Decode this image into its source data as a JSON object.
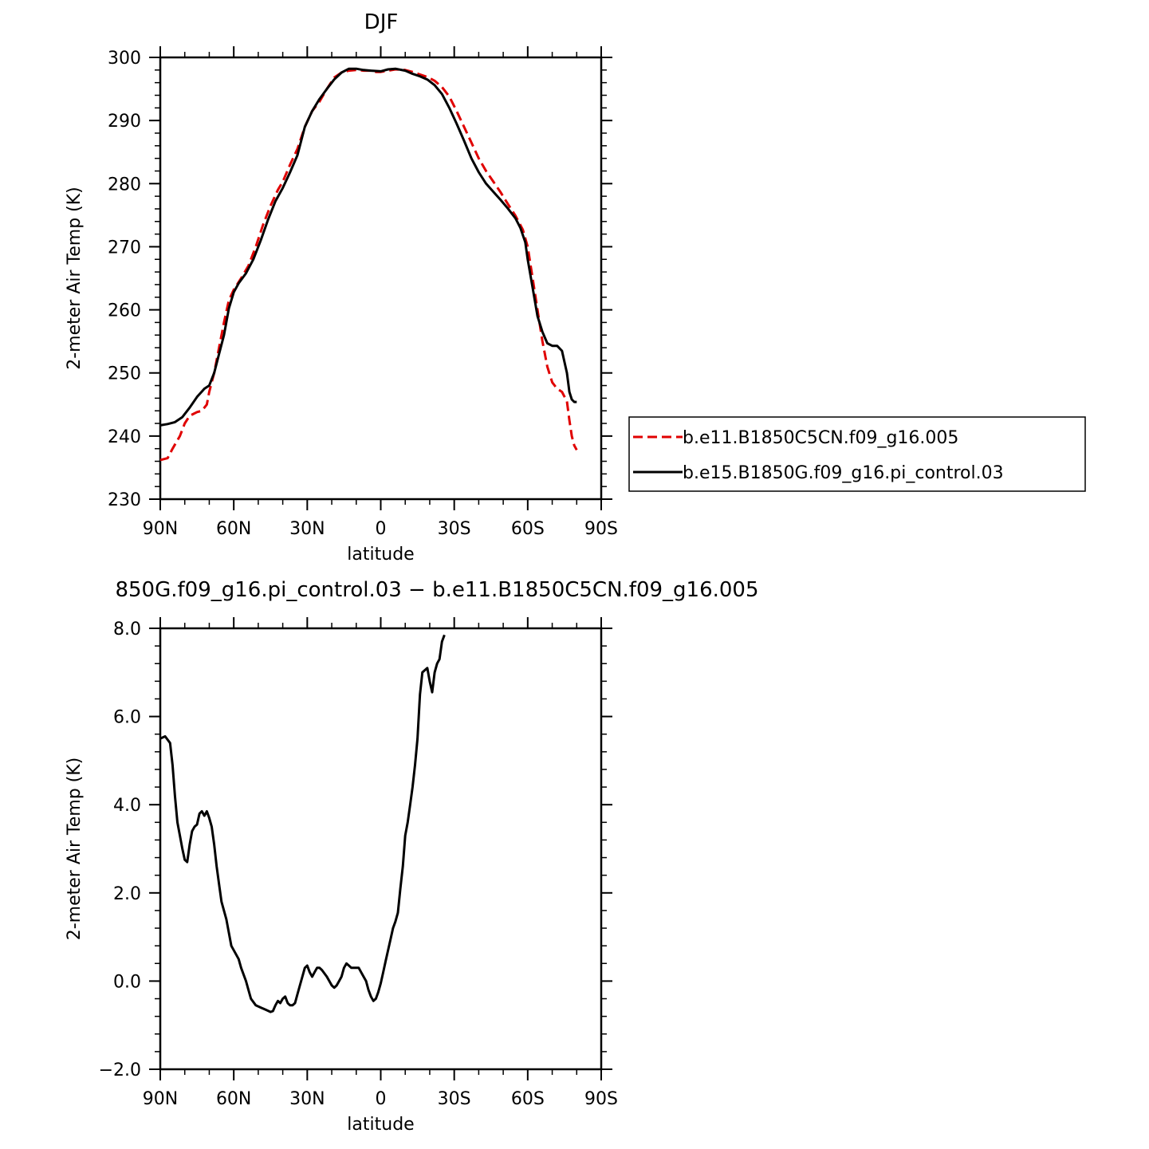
{
  "chart_data": [
    {
      "type": "line",
      "title": "DJF",
      "xlabel": "latitude",
      "ylabel": "2-meter Air Temp (K)",
      "xlim": [
        90,
        -90
      ],
      "ylim": [
        230,
        300
      ],
      "x_ticks": [
        90,
        60,
        30,
        0,
        -30,
        -60,
        -90
      ],
      "x_tick_labels": [
        "90N",
        "60N",
        "30N",
        "0",
        "30S",
        "60S",
        "90S"
      ],
      "y_ticks": [
        230,
        240,
        250,
        260,
        270,
        280,
        290,
        300
      ],
      "y_tick_labels": [
        "230",
        "240",
        "250",
        "260",
        "270",
        "280",
        "290",
        "300"
      ],
      "legend_placement": "outside-right",
      "series": [
        {
          "name": "b.e11.B1850C5CN.f09_g16.005",
          "color": "#e00000",
          "dash": "dashed",
          "points": [
            [
              90,
              236.2
            ],
            [
              87,
              236.5
            ],
            [
              85,
              238
            ],
            [
              82,
              240
            ],
            [
              80,
              242
            ],
            [
              78,
              243.2
            ],
            [
              75,
              243.8
            ],
            [
              73,
              244
            ],
            [
              71,
              245
            ],
            [
              70,
              247
            ],
            [
              68,
              250
            ],
            [
              66,
              254
            ],
            [
              64,
              258
            ],
            [
              62,
              261.5
            ],
            [
              60,
              263.2
            ],
            [
              57,
              265
            ],
            [
              54,
              267
            ],
            [
              51,
              270
            ],
            [
              48,
              273.5
            ],
            [
              45,
              276.5
            ],
            [
              42,
              279
            ],
            [
              40,
              280.3
            ],
            [
              37,
              283
            ],
            [
              34,
              285.5
            ],
            [
              31,
              289
            ],
            [
              28,
              291.5
            ],
            [
              25,
              293
            ],
            [
              22,
              295
            ],
            [
              19,
              296.8
            ],
            [
              16,
              297.6
            ],
            [
              13,
              297.9
            ],
            [
              10,
              298
            ],
            [
              7,
              297.9
            ],
            [
              4,
              297.9
            ],
            [
              2,
              297.7
            ],
            [
              0,
              297.7
            ],
            [
              -3,
              297.9
            ],
            [
              -6,
              298.1
            ],
            [
              -10,
              298
            ],
            [
              -13,
              297.7
            ],
            [
              -16,
              297.3
            ],
            [
              -19,
              296.9
            ],
            [
              -22,
              296.3
            ],
            [
              -25,
              295.3
            ],
            [
              -28,
              293.8
            ],
            [
              -31,
              291.5
            ],
            [
              -34,
              289
            ],
            [
              -37,
              286.5
            ],
            [
              -40,
              284
            ],
            [
              -43,
              282
            ],
            [
              -46,
              280.3
            ],
            [
              -49,
              278.6
            ],
            [
              -52,
              276.7
            ],
            [
              -55,
              274.9
            ],
            [
              -58,
              272.7
            ],
            [
              -60,
              270
            ],
            [
              -62,
              265
            ],
            [
              -64,
              260
            ],
            [
              -66,
              255
            ],
            [
              -68,
              251
            ],
            [
              -70,
              248.5
            ],
            [
              -72,
              247.5
            ],
            [
              -74,
              247
            ],
            [
              -76,
              245.5
            ],
            [
              -77,
              242.5
            ],
            [
              -78,
              240
            ],
            [
              -79,
              238.5
            ],
            [
              -80,
              237.8
            ]
          ]
        },
        {
          "name": "b.e15.B1850G.f09_g16.pi_control.03",
          "color": "#000000",
          "dash": "solid",
          "points": [
            [
              90,
              241.7
            ],
            [
              87,
              241.9
            ],
            [
              84,
              242.2
            ],
            [
              81,
              243
            ],
            [
              78,
              244.5
            ],
            [
              75,
              246.2
            ],
            [
              72,
              247.5
            ],
            [
              70,
              248
            ],
            [
              68,
              250
            ],
            [
              66,
              253
            ],
            [
              64,
              256
            ],
            [
              62,
              260.2
            ],
            [
              60,
              262.8
            ],
            [
              58,
              264.2
            ],
            [
              55,
              265.8
            ],
            [
              52,
              268
            ],
            [
              49,
              271
            ],
            [
              46,
              274.3
            ],
            [
              43,
              277.2
            ],
            [
              40,
              279.3
            ],
            [
              37,
              281.8
            ],
            [
              34,
              284.5
            ],
            [
              31,
              289
            ],
            [
              28,
              291.5
            ],
            [
              25,
              293.4
            ],
            [
              22,
              295
            ],
            [
              19,
              296.5
            ],
            [
              16,
              297.6
            ],
            [
              13,
              298.2
            ],
            [
              10,
              298.2
            ],
            [
              7,
              298
            ],
            [
              4,
              297.9
            ],
            [
              0,
              297.8
            ],
            [
              -3,
              298.1
            ],
            [
              -6,
              298.2
            ],
            [
              -10,
              297.9
            ],
            [
              -13,
              297.4
            ],
            [
              -16,
              297
            ],
            [
              -19,
              296.5
            ],
            [
              -22,
              295.6
            ],
            [
              -25,
              294.2
            ],
            [
              -28,
              292
            ],
            [
              -31,
              289.5
            ],
            [
              -34,
              286.8
            ],
            [
              -37,
              284
            ],
            [
              -40,
              281.8
            ],
            [
              -43,
              280
            ],
            [
              -46,
              278.7
            ],
            [
              -49,
              277.4
            ],
            [
              -52,
              276
            ],
            [
              -55,
              274.5
            ],
            [
              -57,
              273
            ],
            [
              -59,
              270.7
            ],
            [
              -60,
              268
            ],
            [
              -62,
              263.5
            ],
            [
              -64,
              259
            ],
            [
              -66,
              256.5
            ],
            [
              -68,
              254.7
            ],
            [
              -70,
              254.3
            ],
            [
              -72,
              254.3
            ],
            [
              -74,
              253.5
            ],
            [
              -76,
              250
            ],
            [
              -77,
              247
            ],
            [
              -78,
              245.8
            ],
            [
              -79,
              245.4
            ],
            [
              -80,
              245.4
            ]
          ]
        }
      ]
    },
    {
      "type": "line",
      "title": "850G.f09_g16.pi_control.03 − b.e11.B1850C5CN.f09_g16.005",
      "xlabel": "latitude",
      "ylabel": "2-meter Air Temp (K)",
      "xlim": [
        90,
        -90
      ],
      "ylim": [
        -2,
        8
      ],
      "x_ticks": [
        90,
        60,
        30,
        0,
        -30,
        -60,
        -90
      ],
      "x_tick_labels": [
        "90N",
        "60N",
        "30N",
        "0",
        "30S",
        "60S",
        "90S"
      ],
      "y_ticks": [
        -2,
        0,
        2,
        4,
        6,
        8
      ],
      "y_tick_labels": [
        "−2.0",
        "0.0",
        "2.0",
        "4.0",
        "6.0",
        "8.0"
      ],
      "series": [
        {
          "color": "#000000",
          "dash": "solid",
          "points": [
            [
              90,
              5.5
            ],
            [
              88,
              5.55
            ],
            [
              86,
              5.4
            ],
            [
              85,
              4.9
            ],
            [
              84,
              4.2
            ],
            [
              83,
              3.6
            ],
            [
              82,
              3.3
            ],
            [
              81,
              3.0
            ],
            [
              80,
              2.75
            ],
            [
              79,
              2.7
            ],
            [
              78,
              3.1
            ],
            [
              77,
              3.4
            ],
            [
              76,
              3.5
            ],
            [
              75,
              3.55
            ],
            [
              74,
              3.8
            ],
            [
              73,
              3.85
            ],
            [
              72,
              3.75
            ],
            [
              71,
              3.85
            ],
            [
              70,
              3.7
            ],
            [
              69,
              3.5
            ],
            [
              68,
              3.1
            ],
            [
              67,
              2.6
            ],
            [
              66,
              2.2
            ],
            [
              65,
              1.8
            ],
            [
              63,
              1.4
            ],
            [
              62,
              1.1
            ],
            [
              61,
              0.8
            ],
            [
              59,
              0.6
            ],
            [
              58,
              0.5
            ],
            [
              57,
              0.3
            ],
            [
              55,
              0.0
            ],
            [
              54,
              -0.2
            ],
            [
              53,
              -0.4
            ],
            [
              51,
              -0.55
            ],
            [
              49,
              -0.6
            ],
            [
              47,
              -0.65
            ],
            [
              45,
              -0.7
            ],
            [
              44,
              -0.68
            ],
            [
              43,
              -0.55
            ],
            [
              42,
              -0.45
            ],
            [
              41,
              -0.5
            ],
            [
              40,
              -0.4
            ],
            [
              39,
              -0.35
            ],
            [
              38,
              -0.5
            ],
            [
              37,
              -0.55
            ],
            [
              36,
              -0.55
            ],
            [
              35,
              -0.5
            ],
            [
              34,
              -0.3
            ],
            [
              33,
              -0.1
            ],
            [
              32,
              0.1
            ],
            [
              31,
              0.3
            ],
            [
              30,
              0.35
            ],
            [
              29,
              0.2
            ],
            [
              28,
              0.1
            ],
            [
              27,
              0.2
            ],
            [
              26,
              0.3
            ],
            [
              25,
              0.3
            ],
            [
              24,
              0.25
            ],
            [
              22,
              0.1
            ],
            [
              21,
              0.0
            ],
            [
              20,
              -0.1
            ],
            [
              19,
              -0.15
            ],
            [
              18,
              -0.1
            ],
            [
              17,
              0.0
            ],
            [
              16,
              0.1
            ],
            [
              15,
              0.3
            ],
            [
              14,
              0.4
            ],
            [
              13,
              0.35
            ],
            [
              12,
              0.3
            ],
            [
              10,
              0.3
            ],
            [
              9,
              0.3
            ],
            [
              8,
              0.2
            ],
            [
              7,
              0.1
            ],
            [
              6,
              0.0
            ],
            [
              5,
              -0.2
            ],
            [
              4,
              -0.35
            ],
            [
              3,
              -0.45
            ],
            [
              2,
              -0.4
            ],
            [
              1,
              -0.25
            ],
            [
              0,
              -0.05
            ],
            [
              -1,
              0.2
            ],
            [
              -2,
              0.45
            ],
            [
              -3,
              0.7
            ],
            [
              -4,
              0.95
            ],
            [
              -5,
              1.2
            ],
            [
              -6,
              1.35
            ],
            [
              -7,
              1.55
            ],
            [
              -8,
              2.1
            ],
            [
              -9,
              2.6
            ],
            [
              -10,
              3.3
            ],
            [
              -11,
              3.6
            ],
            [
              -12,
              4.0
            ],
            [
              -13,
              4.4
            ],
            [
              -14,
              4.9
            ],
            [
              -15,
              5.5
            ],
            [
              -16,
              6.5
            ],
            [
              -17,
              7.0
            ],
            [
              -18,
              7.05
            ],
            [
              -19,
              7.1
            ],
            [
              -20,
              6.8
            ],
            [
              -21,
              6.55
            ],
            [
              -22,
              7.0
            ],
            [
              -23,
              7.2
            ],
            [
              -24,
              7.3
            ],
            [
              -25,
              7.7
            ],
            [
              -26,
              7.85
            ]
          ]
        }
      ]
    }
  ],
  "legend": {
    "entries": [
      "b.e11.B1850C5CN.f09_g16.005",
      "b.e15.B1850G.f09_g16.pi_control.03"
    ]
  }
}
